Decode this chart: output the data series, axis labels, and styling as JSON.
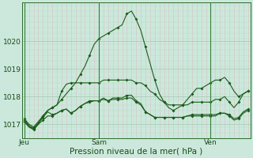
{
  "title": "Pression niveau de la mer( hPa )",
  "bg_color": "#cce8dc",
  "plot_bg_color": "#cce8dc",
  "line_color": "#1a5c1a",
  "marker_color": "#1a5c1a",
  "ylim": [
    1016.5,
    1021.4
  ],
  "yticks": [
    1017,
    1018,
    1019,
    1020
  ],
  "xtick_labels": [
    "Jeu",
    "Sam",
    "Ven"
  ],
  "xtick_positions": [
    0,
    16,
    40
  ],
  "n_points": 49,
  "vline_color": "#3a7c3a",
  "major_hgrid_color": "#a0c8b0",
  "minor_hgrid_color": "#b8dcc8",
  "major_vgrid_color": "#c8a8a8",
  "minor_vgrid_color": "#dcc0c0",
  "series": [
    [
      1017.1,
      1016.9,
      1016.8,
      1017.0,
      1017.3,
      1017.5,
      1017.6,
      1017.7,
      1017.9,
      1018.1,
      1018.3,
      1018.5,
      1018.8,
      1019.1,
      1019.5,
      1019.9,
      1020.1,
      1020.2,
      1020.3,
      1020.4,
      1020.5,
      1020.6,
      1021.0,
      1021.1,
      1020.8,
      1020.4,
      1019.8,
      1019.2,
      1018.6,
      1018.1,
      1017.8,
      1017.6,
      1017.5,
      1017.6,
      1017.7,
      1017.9,
      1018.1,
      1018.3,
      1018.3,
      1018.4,
      1018.5,
      1018.6,
      1018.6,
      1018.7,
      1018.5,
      1018.2,
      1018.0,
      1018.1,
      1018.2
    ],
    [
      1017.2,
      1017.0,
      1016.9,
      1017.1,
      1017.3,
      1017.5,
      1017.6,
      1017.7,
      1018.2,
      1018.45,
      1018.5,
      1018.5,
      1018.5,
      1018.5,
      1018.5,
      1018.5,
      1018.5,
      1018.6,
      1018.6,
      1018.6,
      1018.6,
      1018.6,
      1018.6,
      1018.6,
      1018.5,
      1018.5,
      1018.4,
      1018.2,
      1018.1,
      1017.9,
      1017.8,
      1017.7,
      1017.7,
      1017.7,
      1017.7,
      1017.7,
      1017.8,
      1017.8,
      1017.8,
      1017.8,
      1017.8,
      1017.9,
      1017.9,
      1018.0,
      1017.8,
      1017.6,
      1017.8,
      1018.1,
      1018.2
    ],
    [
      1017.1,
      1016.9,
      1016.85,
      1017.0,
      1017.15,
      1017.3,
      1017.3,
      1017.4,
      1017.5,
      1017.55,
      1017.4,
      1017.5,
      1017.65,
      1017.75,
      1017.8,
      1017.85,
      1017.85,
      1017.9,
      1017.85,
      1017.9,
      1017.9,
      1017.9,
      1017.95,
      1017.95,
      1017.8,
      1017.7,
      1017.45,
      1017.35,
      1017.25,
      1017.25,
      1017.25,
      1017.25,
      1017.25,
      1017.25,
      1017.25,
      1017.3,
      1017.35,
      1017.35,
      1017.35,
      1017.35,
      1017.35,
      1017.35,
      1017.4,
      1017.4,
      1017.35,
      1017.2,
      1017.25,
      1017.45,
      1017.55
    ],
    [
      1017.15,
      1016.95,
      1016.85,
      1017.05,
      1017.25,
      1017.45,
      1017.35,
      1017.4,
      1017.5,
      1017.55,
      1017.4,
      1017.5,
      1017.65,
      1017.75,
      1017.85,
      1017.85,
      1017.85,
      1017.95,
      1017.85,
      1017.95,
      1017.95,
      1017.95,
      1018.05,
      1018.05,
      1017.85,
      1017.75,
      1017.45,
      1017.35,
      1017.25,
      1017.25,
      1017.25,
      1017.25,
      1017.25,
      1017.25,
      1017.25,
      1017.3,
      1017.3,
      1017.3,
      1017.3,
      1017.3,
      1017.3,
      1017.3,
      1017.4,
      1017.4,
      1017.3,
      1017.15,
      1017.2,
      1017.4,
      1017.5
    ]
  ]
}
